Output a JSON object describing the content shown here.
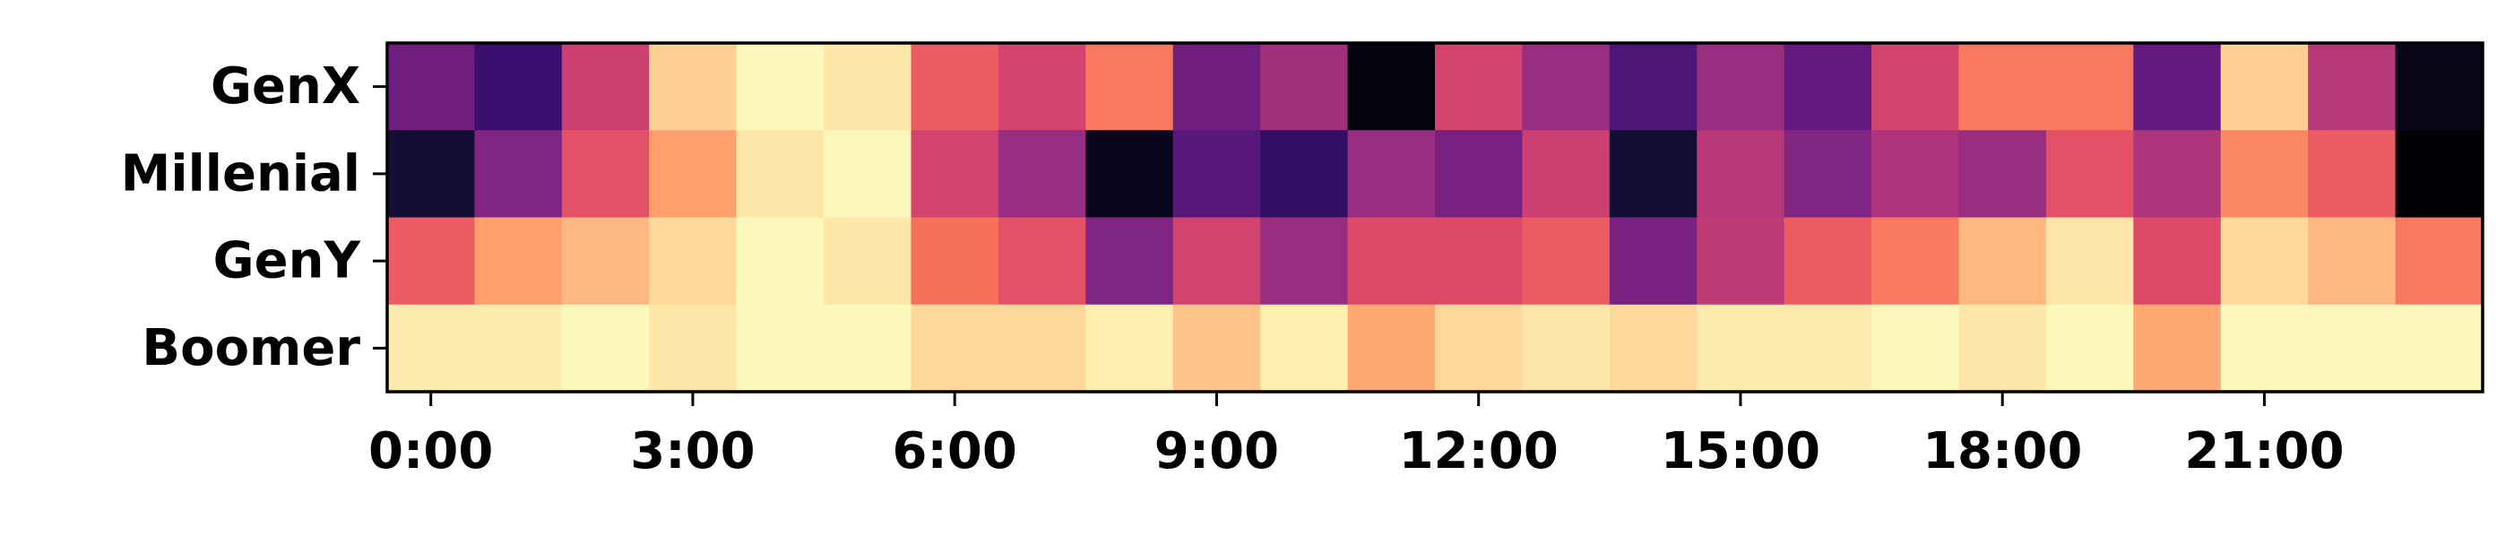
{
  "chart_data": {
    "type": "heatmap",
    "colormap": "magma",
    "value_range": [
      0,
      1
    ],
    "grid": false,
    "rows": [
      "GenX",
      "Millenial",
      "GenY",
      "Boomer"
    ],
    "columns": [
      "0",
      "1",
      "2",
      "3",
      "4",
      "5",
      "6",
      "7",
      "8",
      "9",
      "10",
      "11",
      "12",
      "13",
      "14",
      "15",
      "16",
      "17",
      "18",
      "19",
      "20",
      "21",
      "22",
      "23"
    ],
    "xticks": [
      {
        "hour": 0,
        "label": "0:00"
      },
      {
        "hour": 3,
        "label": "3:00"
      },
      {
        "hour": 6,
        "label": "6:00"
      },
      {
        "hour": 9,
        "label": "9:00"
      },
      {
        "hour": 12,
        "label": "12:00"
      },
      {
        "hour": 15,
        "label": "15:00"
      },
      {
        "hour": 18,
        "label": "18:00"
      },
      {
        "hour": 21,
        "label": "21:00"
      }
    ],
    "values": [
      [
        0.33,
        0.2,
        0.55,
        0.9,
        0.99,
        0.95,
        0.65,
        0.57,
        0.72,
        0.33,
        0.45,
        0.02,
        0.57,
        0.43,
        0.25,
        0.43,
        0.3,
        0.57,
        0.72,
        0.72,
        0.3,
        0.9,
        0.5,
        0.04
      ],
      [
        0.1,
        0.37,
        0.62,
        0.8,
        0.95,
        0.99,
        0.57,
        0.43,
        0.05,
        0.27,
        0.18,
        0.43,
        0.35,
        0.55,
        0.1,
        0.5,
        0.37,
        0.48,
        0.43,
        0.62,
        0.48,
        0.75,
        0.65,
        0.0
      ],
      [
        0.65,
        0.8,
        0.85,
        0.92,
        0.99,
        0.95,
        0.7,
        0.62,
        0.37,
        0.57,
        0.43,
        0.6,
        0.6,
        0.65,
        0.35,
        0.52,
        0.65,
        0.72,
        0.85,
        0.95,
        0.6,
        0.92,
        0.85,
        0.72
      ],
      [
        0.96,
        0.96,
        0.99,
        0.95,
        0.99,
        0.99,
        0.92,
        0.92,
        0.97,
        0.88,
        0.97,
        0.82,
        0.92,
        0.95,
        0.92,
        0.96,
        0.96,
        0.99,
        0.95,
        0.99,
        0.82,
        0.99,
        0.99,
        0.99
      ]
    ]
  }
}
